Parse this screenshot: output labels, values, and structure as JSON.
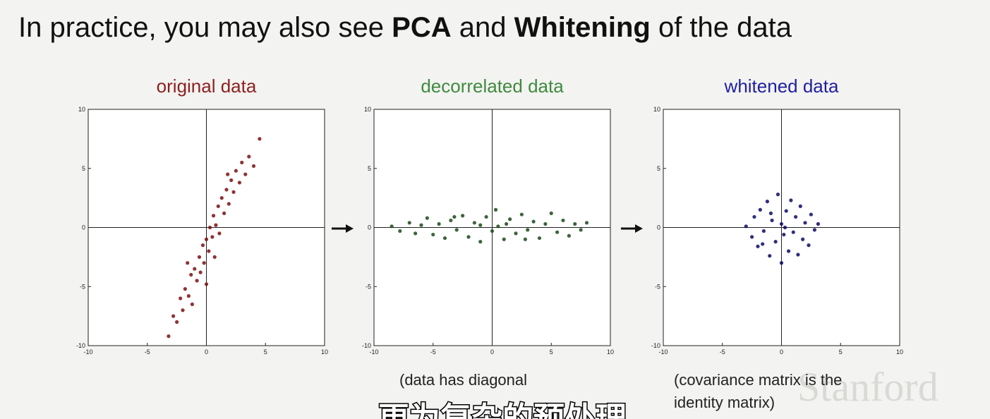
{
  "slide": {
    "title_parts": [
      {
        "text": "In practice, you may also see ",
        "bold": false
      },
      {
        "text": "PCA",
        "bold": true
      },
      {
        "text": " and ",
        "bold": false
      },
      {
        "text": "Whitening",
        "bold": true
      },
      {
        "text": " of the data",
        "bold": false
      }
    ],
    "captions": [
      [
        "(data has diagonal"
      ],
      [
        "(covariance matrix is the",
        "identity matrix)"
      ]
    ],
    "subtitle": "更为复杂的预处理",
    "watermark": "Stanford"
  },
  "chart_data": [
    {
      "type": "scatter",
      "title": "original data",
      "title_color": "#8c2121",
      "color": "#7a1010",
      "xlim": [
        -10,
        10
      ],
      "ylim": [
        -10,
        10
      ],
      "xticks": [
        -10,
        -5,
        0,
        5,
        10
      ],
      "yticks": [
        -10,
        -5,
        0,
        5,
        10
      ],
      "x": [
        -3.2,
        -2.8,
        -2.5,
        -2.2,
        -2,
        -1.8,
        -1.5,
        -1.3,
        -1.2,
        -1,
        -0.8,
        -0.6,
        -0.5,
        -0.3,
        -0.2,
        0,
        0.2,
        0.3,
        0.5,
        0.6,
        0.8,
        1,
        1.1,
        1.3,
        1.5,
        1.7,
        1.9,
        2.1,
        2.3,
        2.5,
        2.8,
        3,
        3.3,
        3.6,
        4,
        4.5,
        0,
        -1.6,
        1.8,
        0.7
      ],
      "y": [
        -9.2,
        -7.5,
        -8,
        -6,
        -7,
        -5.2,
        -5.8,
        -4,
        -6.5,
        -3.5,
        -4.5,
        -2.5,
        -3.8,
        -1.5,
        -3,
        -1,
        -2,
        0,
        -0.8,
        1,
        0.2,
        1.8,
        -0.5,
        2.5,
        1.2,
        3.2,
        2,
        4,
        3,
        4.8,
        3.8,
        5.5,
        4.5,
        6,
        5.2,
        7.5,
        -4.8,
        -3,
        4.5,
        -2.5
      ]
    },
    {
      "type": "scatter",
      "title": "decorrelated data",
      "title_color": "#3f8a3f",
      "color": "#1c4a1c",
      "xlim": [
        -10,
        10
      ],
      "ylim": [
        -10,
        10
      ],
      "xticks": [
        -10,
        -5,
        0,
        5,
        10
      ],
      "yticks": [
        -10,
        -5,
        0,
        5,
        10
      ],
      "x": [
        -8.5,
        -7.8,
        -7,
        -6.5,
        -6,
        -5.5,
        -5,
        -4.5,
        -4,
        -3.5,
        -3,
        -2.5,
        -2,
        -1.5,
        -1,
        -0.5,
        0,
        0.3,
        0.5,
        1,
        1.5,
        2,
        2.5,
        3,
        3.5,
        4,
        4.5,
        5,
        5.5,
        6,
        6.5,
        7,
        7.5,
        8,
        -1,
        1.2,
        -3.2,
        2.8
      ],
      "y": [
        0.1,
        -0.3,
        0.4,
        -0.5,
        0.2,
        0.8,
        -0.6,
        0.3,
        -0.9,
        0.6,
        -0.2,
        1,
        -0.8,
        0.4,
        -1.2,
        0.9,
        -0.3,
        1.5,
        0.1,
        -1,
        0.7,
        -0.5,
        1.1,
        -0.2,
        0.5,
        -0.9,
        0.3,
        1.2,
        -0.4,
        0.6,
        -0.7,
        0.3,
        -0.2,
        0.4,
        0.2,
        0.3,
        0.9,
        -1
      ]
    },
    {
      "type": "scatter",
      "title": "whitened data",
      "title_color": "#1f1fa0",
      "color": "#0a0a66",
      "xlim": [
        -10,
        10
      ],
      "ylim": [
        -10,
        10
      ],
      "xticks": [
        -10,
        -5,
        0,
        5,
        10
      ],
      "yticks": [
        -10,
        -5,
        0,
        5,
        10
      ],
      "x": [
        -3,
        -2.5,
        -2.3,
        -2,
        -1.8,
        -1.5,
        -1.2,
        -1,
        -0.8,
        -0.5,
        -0.3,
        0,
        0,
        0.2,
        0.4,
        0.6,
        0.8,
        1,
        1.2,
        1.4,
        1.6,
        1.8,
        2,
        2.3,
        2.5,
        2.8,
        3.1,
        -0.9,
        0.3,
        -1.6
      ],
      "y": [
        0.1,
        -0.8,
        0.9,
        -1.6,
        1.5,
        -0.3,
        2.2,
        -2.4,
        0.6,
        -1.2,
        2.8,
        -3,
        0.3,
        -0.6,
        1.4,
        -2,
        2.3,
        -0.4,
        0.9,
        -2.3,
        1.8,
        -1,
        0.4,
        -1.5,
        1.1,
        -0.2,
        0.3,
        1.2,
        0,
        -1.4
      ]
    }
  ]
}
